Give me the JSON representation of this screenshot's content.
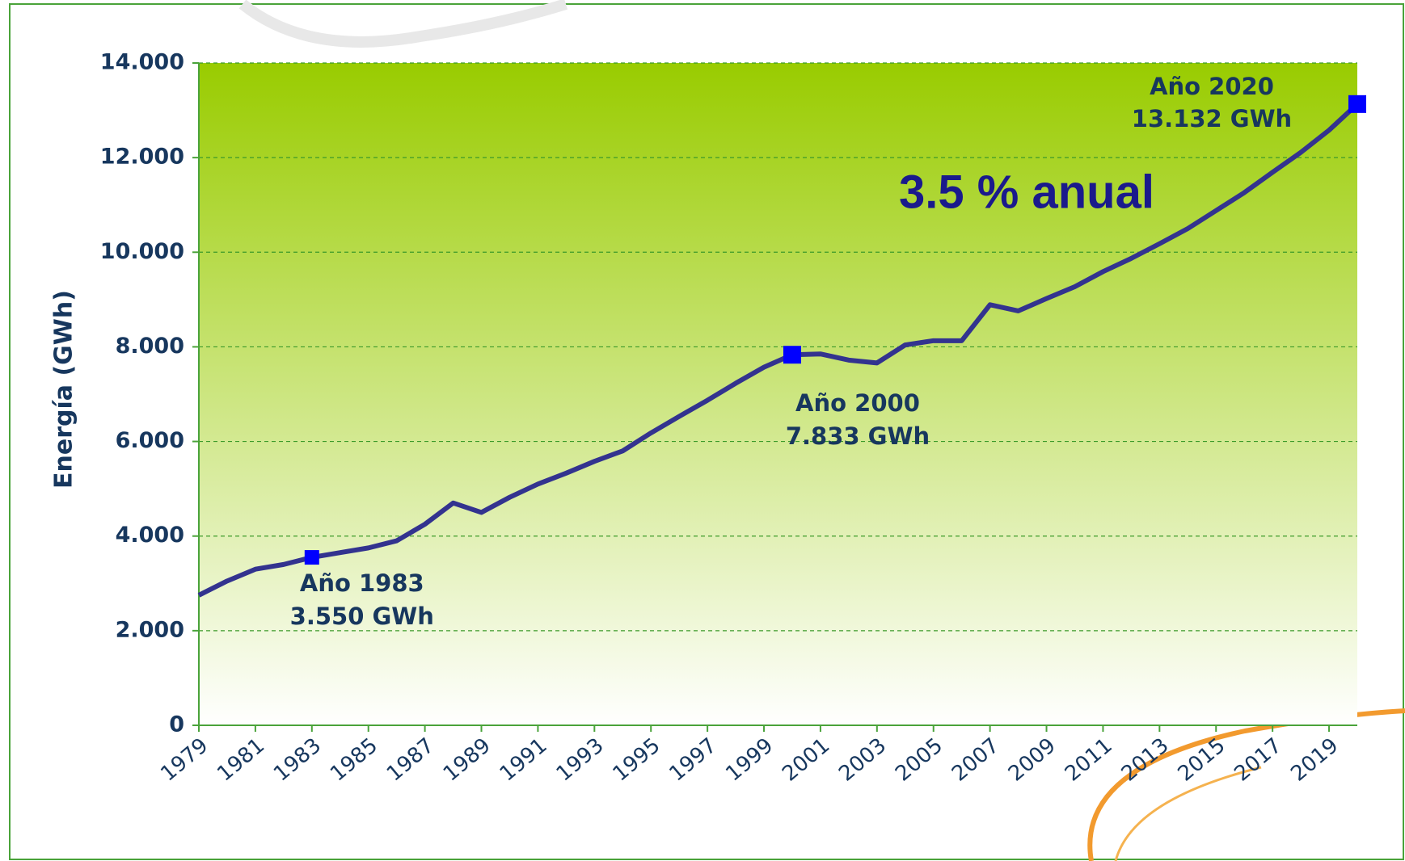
{
  "chart_data": {
    "type": "line",
    "y_label": "Energía (GWh)",
    "annotation": "3.5 % anual",
    "x": [
      1979,
      1980,
      1981,
      1982,
      1983,
      1984,
      1985,
      1986,
      1987,
      1988,
      1989,
      1990,
      1991,
      1992,
      1993,
      1994,
      1995,
      1996,
      1997,
      1998,
      1999,
      2000,
      2001,
      2002,
      2003,
      2004,
      2005,
      2006,
      2007,
      2008,
      2009,
      2010,
      2011,
      2012,
      2013,
      2014,
      2015,
      2016,
      2017,
      2018,
      2019,
      2020
    ],
    "series": [
      {
        "color": "#33338f",
        "values": [
          2750,
          3050,
          3300,
          3400,
          3550,
          3650,
          3750,
          3900,
          4250,
          4700,
          4500,
          4820,
          5100,
          5330,
          5580,
          5800,
          6180,
          6530,
          6870,
          7230,
          7570,
          7833,
          7850,
          7720,
          7660,
          8040,
          8130,
          8130,
          8890,
          8760,
          9020,
          9270,
          9590,
          9870,
          10180,
          10500,
          10880,
          11260,
          11690,
          12110,
          12580,
          13132
        ]
      }
    ],
    "highlights": [
      {
        "x": 1983,
        "label": "Año 1983",
        "value_label": "3.550 GWh"
      },
      {
        "x": 2000,
        "label": "Año 2000",
        "value_label": "7.833 GWh"
      },
      {
        "x": 2020,
        "label": "Año 2020",
        "value_label": "13.132 GWh"
      }
    ],
    "marker_color": "#0000ff",
    "xlim": [
      1979,
      2020
    ],
    "xticks": [
      1979,
      1981,
      1983,
      1985,
      1987,
      1989,
      1991,
      1993,
      1995,
      1997,
      1999,
      2001,
      2003,
      2005,
      2007,
      2009,
      2011,
      2013,
      2015,
      2017,
      2019
    ],
    "ylim": [
      0,
      14000
    ],
    "yticks": [
      0,
      {
        "value": 2000,
        "label": "2.000"
      },
      {
        "value": 4000,
        "label": "4.000"
      },
      {
        "value": 6000,
        "label": "6.000"
      },
      {
        "value": 8000,
        "label": "8.000"
      },
      {
        "value": 10000,
        "label": "10.000"
      },
      {
        "value": 12000,
        "label": "12.000"
      },
      {
        "value": 14000,
        "label": "14.000"
      }
    ],
    "grid": true
  }
}
